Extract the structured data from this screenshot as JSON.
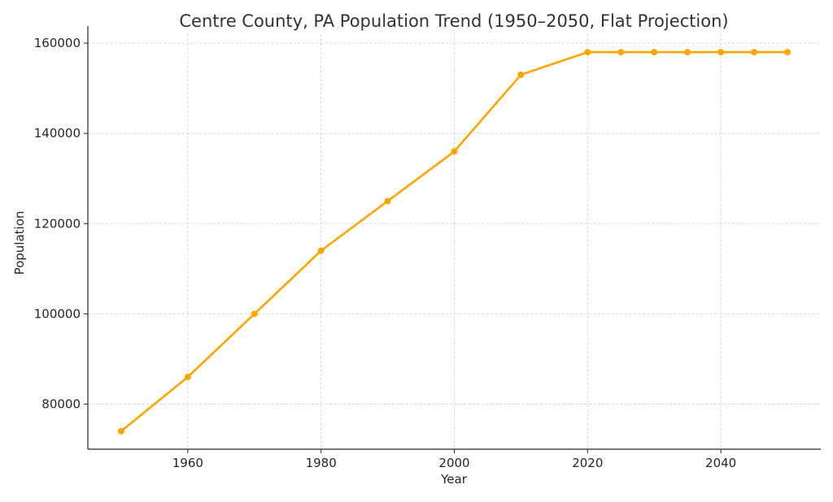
{
  "chart_data": {
    "type": "line",
    "title": "Centre County, PA Population Trend (1950–2050, Flat Projection)",
    "xlabel": "Year",
    "ylabel": "Population",
    "x": [
      1950,
      1960,
      1970,
      1980,
      1990,
      2000,
      2010,
      2020,
      2025,
      2030,
      2035,
      2040,
      2045,
      2050
    ],
    "series": [
      {
        "values": [
          74000,
          86000,
          100000,
          114000,
          125000,
          136000,
          153000,
          158000,
          158000,
          158000,
          158000,
          158000,
          158000,
          158000
        ],
        "color": "#FFA500"
      }
    ],
    "xlim": [
      1945,
      2055
    ],
    "ylim": [
      70000,
      162000
    ],
    "xticks": [
      1960,
      1980,
      2000,
      2020,
      2040
    ],
    "yticks": [
      80000,
      100000,
      120000,
      140000,
      160000
    ],
    "grid": true,
    "grid_style": "dashed",
    "legend": false
  }
}
